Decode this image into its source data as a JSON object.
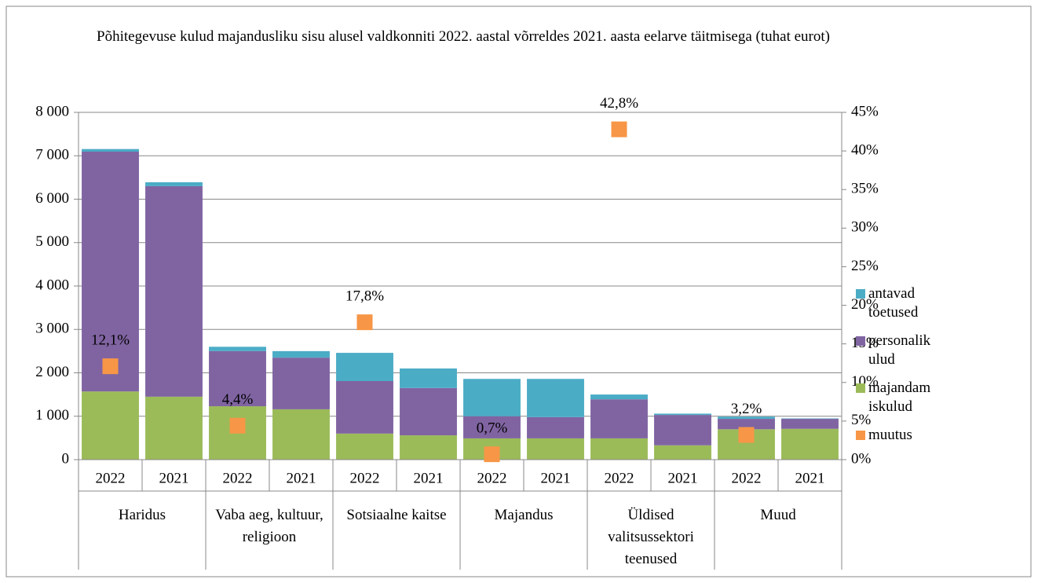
{
  "chart_data": {
    "type": "bar",
    "stacked": true,
    "title": "Põhitegevuse kulud majandusliku sisu alusel valdkonniti 2022. aastal võrreldes 2021. aasta eelarve täitmisega (tuhat eurot)",
    "categories": [
      "2022",
      "2021",
      "2022",
      "2021",
      "2022",
      "2021",
      "2022",
      "2021",
      "2022",
      "2021",
      "2022",
      "2021"
    ],
    "groups": [
      "Haridus",
      "Vaba aeg, kultuur, religioon",
      "Sotsiaalne kaitse",
      "Majandus",
      "Üldised valitsussektori teenused",
      "Muud"
    ],
    "series": [
      {
        "name": "antavad toetused",
        "color": "#4bacc6",
        "values": [
          60,
          90,
          100,
          150,
          650,
          450,
          860,
          880,
          110,
          30,
          50,
          10
        ]
      },
      {
        "name": "personalikulud",
        "color": "#8064a2",
        "values": [
          5525,
          4850,
          1270,
          1190,
          1210,
          1090,
          510,
          490,
          900,
          700,
          240,
          230
        ]
      },
      {
        "name": "majandamiskulud",
        "color": "#9bbb59",
        "values": [
          1570,
          1450,
          1230,
          1160,
          600,
          560,
          490,
          490,
          490,
          330,
          700,
          710
        ]
      },
      {
        "name": "muutus",
        "color": "#f79646",
        "type": "scatter",
        "axis": "y2",
        "values": [
          12.1,
          null,
          4.4,
          null,
          17.8,
          null,
          0.7,
          null,
          42.8,
          null,
          3.2,
          null
        ],
        "value_labels": [
          "12,1%",
          null,
          "4,4%",
          null,
          "17,8%",
          null,
          "0,7%",
          null,
          "42,8%",
          null,
          "3,2%",
          null
        ]
      }
    ],
    "ylim": [
      0,
      8000
    ],
    "yticks": [
      0,
      {
        "value": 1000,
        "label": "1 000"
      },
      {
        "value": 2000,
        "label": "2 000"
      },
      {
        "value": 3000,
        "label": "3 000"
      },
      {
        "value": 4000,
        "label": "4 000"
      },
      {
        "value": 5000,
        "label": "5 000"
      },
      {
        "value": 6000,
        "label": "6 000"
      },
      {
        "value": 7000,
        "label": "7 000"
      },
      {
        "value": 8000,
        "label": "8 000"
      }
    ],
    "y2lim": [
      0,
      45
    ],
    "y2ticks": [
      {
        "value": 0,
        "label": "0%"
      },
      {
        "value": 5,
        "label": "5%"
      },
      {
        "value": 10,
        "label": "10%"
      },
      {
        "value": 15,
        "label": "15%"
      },
      {
        "value": 20,
        "label": "20%"
      },
      {
        "value": 25,
        "label": "25%"
      },
      {
        "value": 30,
        "label": "30%"
      },
      {
        "value": 35,
        "label": "35%"
      },
      {
        "value": 40,
        "label": "40%"
      },
      {
        "value": 45,
        "label": "45%"
      }
    ],
    "grid": true,
    "legend": "right"
  }
}
